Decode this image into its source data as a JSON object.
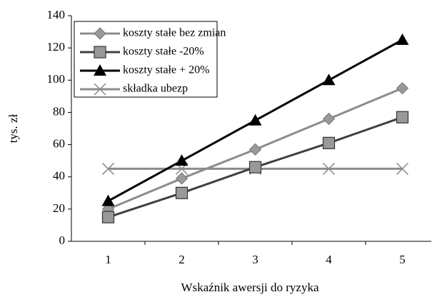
{
  "chart_data": {
    "type": "line",
    "x_label": "Wskaźnik awersji do ryzyka",
    "y_label": "tys. zł",
    "categories": [
      "1",
      "2",
      "3",
      "4",
      "5"
    ],
    "series": [
      {
        "name": "koszty stałe bez zmian",
        "color": "#8c8c8c",
        "marker": "diamond",
        "values": [
          20,
          39,
          57,
          76,
          95
        ]
      },
      {
        "name": "koszty stałe -20%",
        "color": "#404040",
        "marker": "square",
        "values": [
          15,
          30,
          46,
          61,
          77
        ]
      },
      {
        "name": "koszty stałe + 20%",
        "color": "#000000",
        "marker": "triangle",
        "values": [
          25,
          50,
          75,
          100,
          125
        ]
      },
      {
        "name": "składka ubezp",
        "color": "#8c8c8c",
        "marker": "x",
        "values": [
          45,
          45,
          45,
          45,
          45
        ]
      }
    ],
    "ylim": [
      0,
      140
    ],
    "yticks": [
      0,
      20,
      40,
      60,
      80,
      100,
      120,
      140
    ],
    "grid": false,
    "legend": "upper left"
  }
}
